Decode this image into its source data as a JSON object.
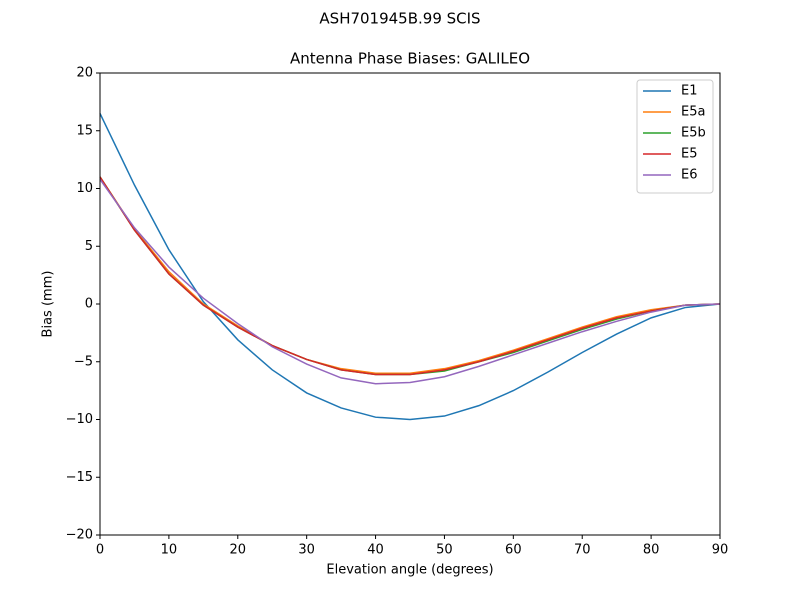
{
  "chart_data": {
    "type": "line",
    "suptitle": "ASH701945B.99   SCIS",
    "title": "Antenna Phase Biases: GALILEO",
    "x_label": "Elevation angle (degrees)",
    "y_label": "Bias (mm)",
    "x": [
      0,
      5,
      10,
      15,
      20,
      25,
      30,
      35,
      40,
      45,
      50,
      55,
      60,
      65,
      70,
      75,
      80,
      85,
      90
    ],
    "series": [
      {
        "name": "E1",
        "color": "#1f77b4",
        "values": [
          16.5,
          10.3,
          4.7,
          0.2,
          -3.1,
          -5.7,
          -7.7,
          -9.0,
          -9.8,
          -10.0,
          -9.7,
          -8.8,
          -7.5,
          -5.9,
          -4.2,
          -2.6,
          -1.2,
          -0.3,
          0
        ]
      },
      {
        "name": "E5a",
        "color": "#ff7f0e",
        "values": [
          11.0,
          6.5,
          2.8,
          0,
          -1.9,
          -3.6,
          -4.8,
          -5.6,
          -6.0,
          -6.0,
          -5.6,
          -4.9,
          -4.0,
          -3.0,
          -2.0,
          -1.1,
          -0.5,
          -0.1,
          0
        ]
      },
      {
        "name": "E5b",
        "color": "#2ca02c",
        "values": [
          11.0,
          6.4,
          2.6,
          -0.1,
          -2.0,
          -3.6,
          -4.8,
          -5.7,
          -6.1,
          -6.1,
          -5.8,
          -5.0,
          -4.2,
          -3.2,
          -2.2,
          -1.3,
          -0.6,
          -0.1,
          0
        ]
      },
      {
        "name": "E5",
        "color": "#d62728",
        "values": [
          11.0,
          6.4,
          2.6,
          -0.1,
          -2.0,
          -3.6,
          -4.8,
          -5.7,
          -6.1,
          -6.1,
          -5.7,
          -5.0,
          -4.1,
          -3.1,
          -2.1,
          -1.2,
          -0.6,
          -0.1,
          0
        ]
      },
      {
        "name": "E6",
        "color": "#9467bd",
        "values": [
          10.8,
          6.6,
          3.2,
          0.5,
          -1.7,
          -3.7,
          -5.2,
          -6.4,
          -6.9,
          -6.8,
          -6.3,
          -5.4,
          -4.4,
          -3.4,
          -2.4,
          -1.5,
          -0.7,
          -0.1,
          0
        ]
      }
    ],
    "xlim": [
      0,
      90
    ],
    "ylim": [
      -20,
      20
    ],
    "xticks": [
      0,
      10,
      20,
      30,
      40,
      50,
      60,
      70,
      80,
      90
    ],
    "yticks": [
      {
        "value": -20,
        "label": "−20"
      },
      {
        "value": -15,
        "label": "−15"
      },
      {
        "value": -10,
        "label": "−10"
      },
      {
        "value": -5,
        "label": "−5"
      },
      0,
      5,
      10,
      15,
      20
    ],
    "grid": false,
    "legend": "upper right"
  }
}
